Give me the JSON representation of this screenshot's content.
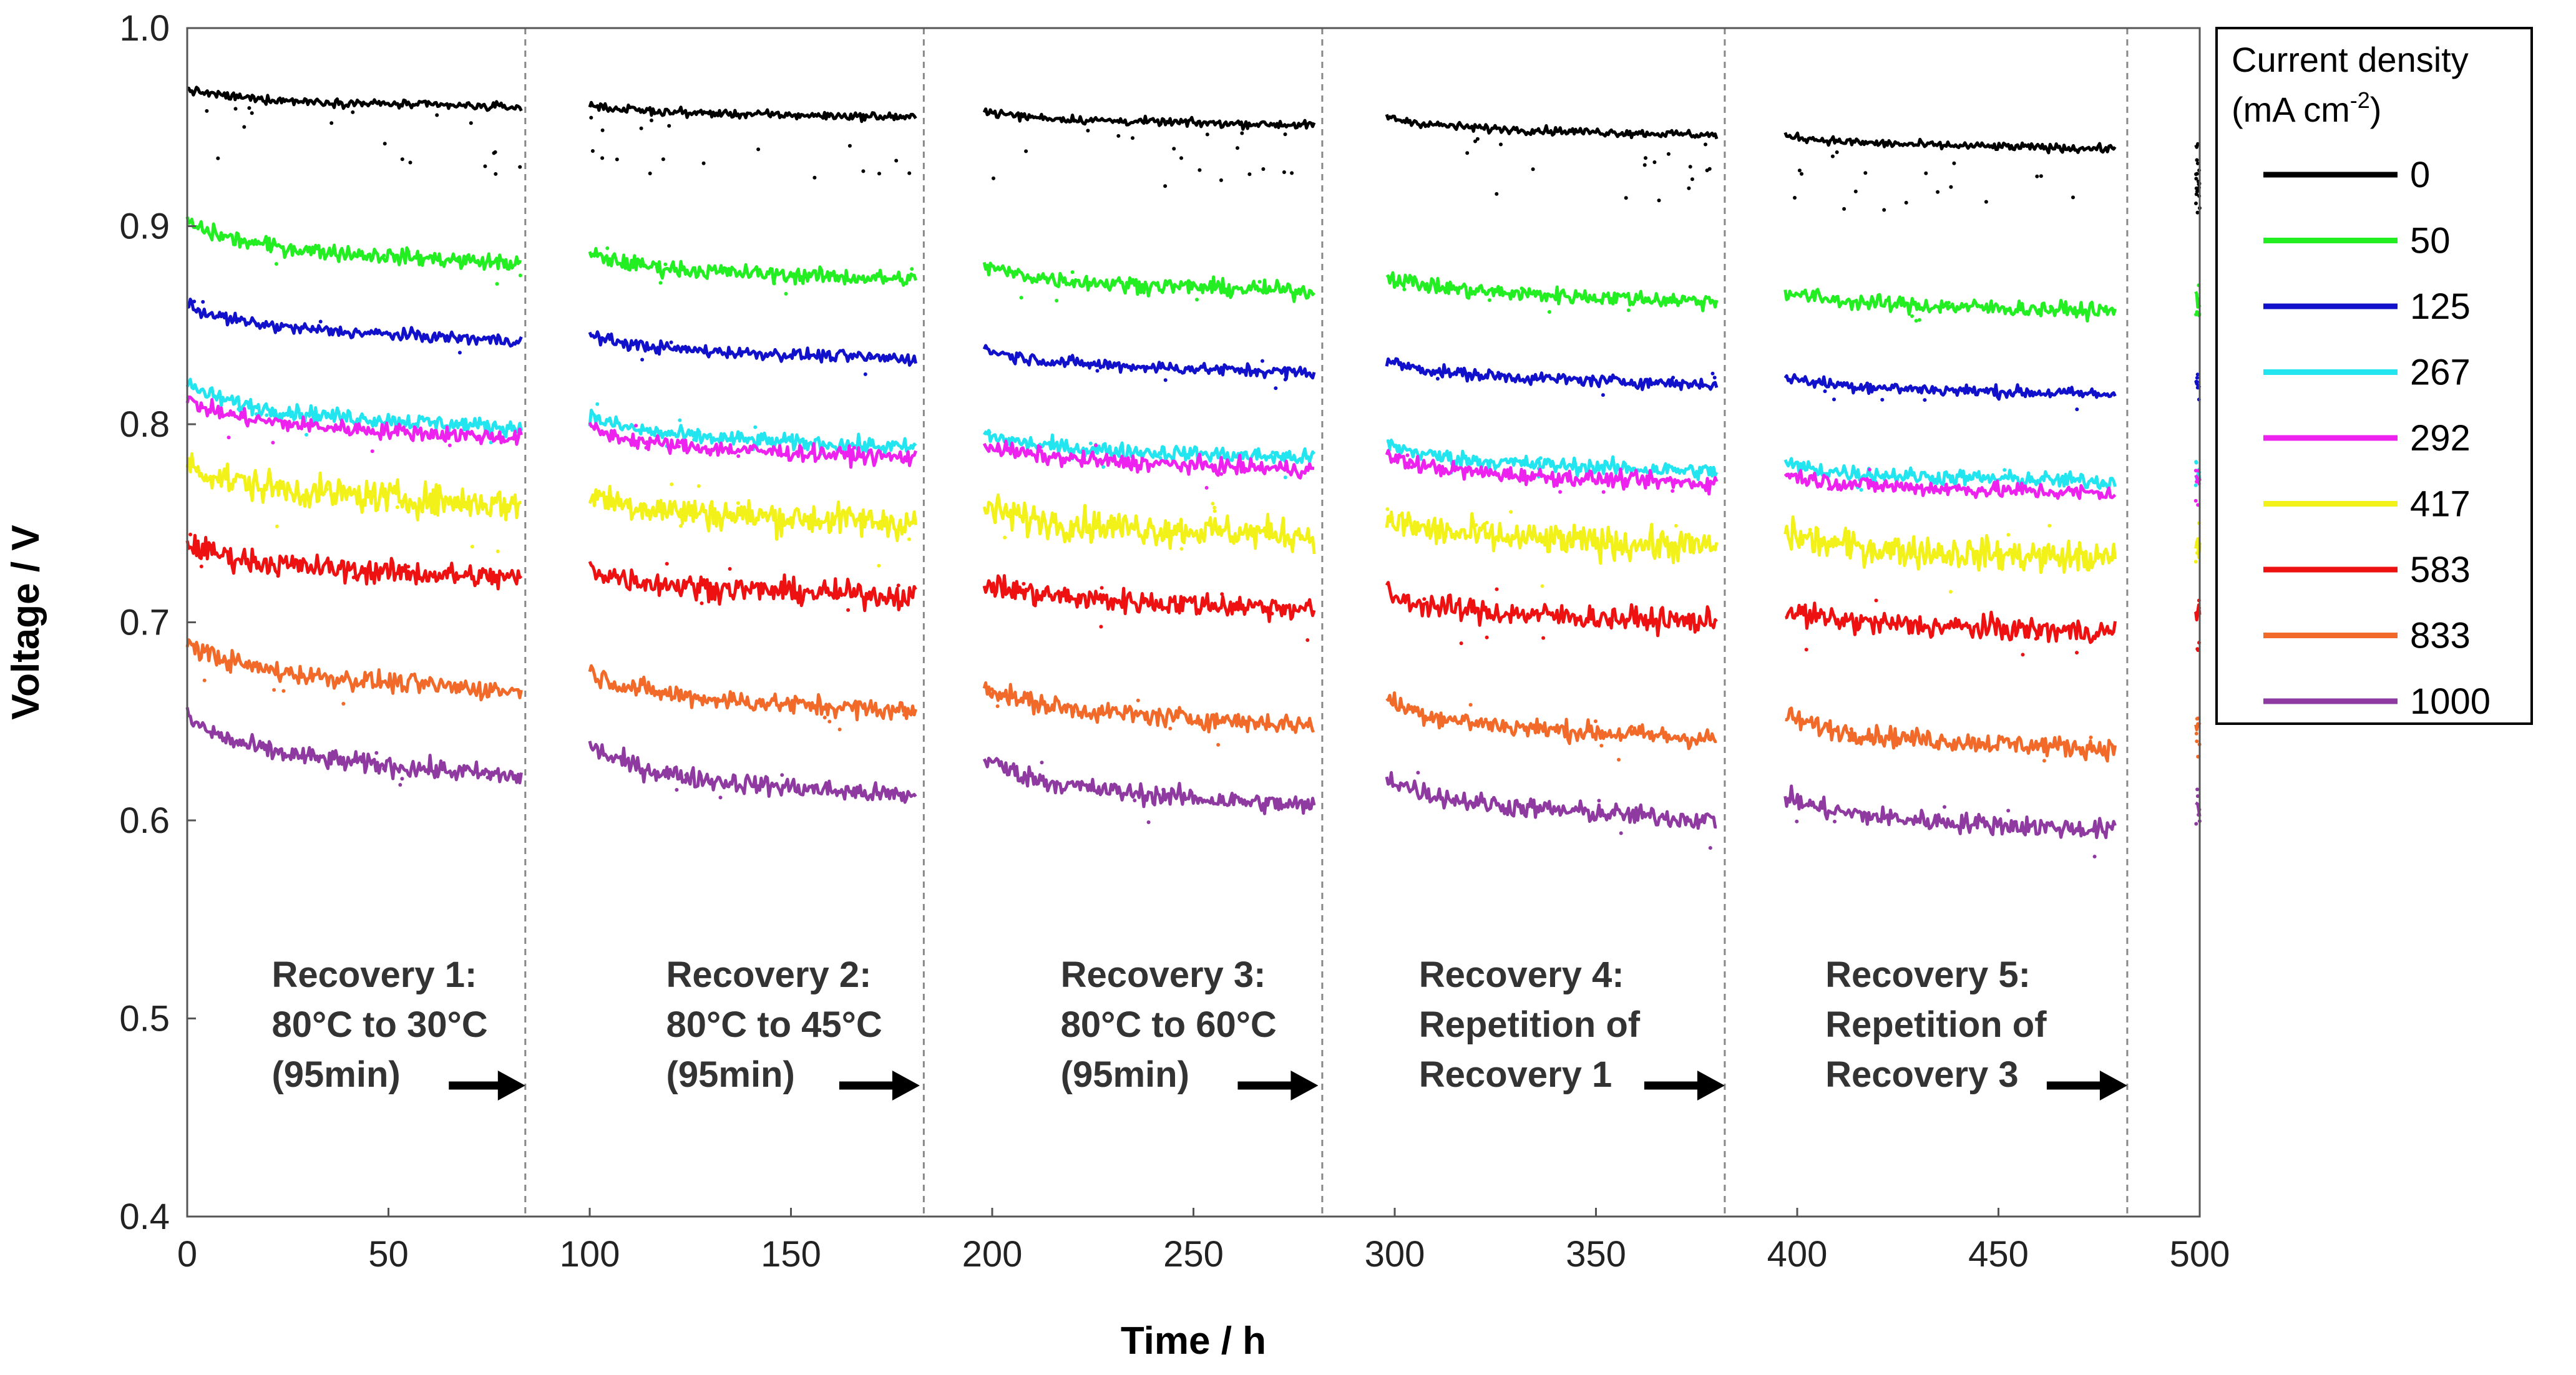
{
  "chart_data": {
    "type": "scatter",
    "title": "",
    "xlabel": "Time / h",
    "ylabel": "Voltage / V",
    "xlim": [
      0,
      500
    ],
    "ylim": [
      0.4,
      1.0
    ],
    "xticks": [
      "0",
      "50",
      "100",
      "150",
      "200",
      "250",
      "300",
      "350",
      "400",
      "450",
      "500"
    ],
    "yticks": [
      "0.4",
      "0.5",
      "0.6",
      "0.7",
      "0.8",
      "0.9",
      "1.0"
    ],
    "grid": false,
    "legend": {
      "title_line1": "Current density",
      "title_line2_main": "(mA cm",
      "title_line2_sup": "-2",
      "title_line2_end": ")",
      "placement": "right"
    },
    "segments": [
      {
        "x_start": 0,
        "x_end": 83
      },
      {
        "x_start": 100,
        "x_end": 181
      },
      {
        "x_start": 198,
        "x_end": 280
      },
      {
        "x_start": 298,
        "x_end": 380
      },
      {
        "x_start": 397,
        "x_end": 479
      },
      {
        "x_start": 499,
        "x_end": 500
      }
    ],
    "dividers": [
      84,
      183,
      282,
      382,
      482
    ],
    "series": [
      {
        "name": "0",
        "color": "#000000",
        "spread": 0.002,
        "start": [
          0.969,
          0.961,
          0.958,
          0.955,
          0.946,
          0.941
        ],
        "end": [
          0.96,
          0.955,
          0.951,
          0.946,
          0.939,
          0.94
        ]
      },
      {
        "name": "50",
        "color": "#22ee22",
        "spread": 0.004,
        "start": [
          0.902,
          0.886,
          0.88,
          0.875,
          0.867,
          0.865
        ],
        "end": [
          0.881,
          0.873,
          0.867,
          0.862,
          0.857,
          0.862
        ]
      },
      {
        "name": "125",
        "color": "#1111cc",
        "spread": 0.003,
        "start": [
          0.86,
          0.845,
          0.838,
          0.832,
          0.824,
          0.822
        ],
        "end": [
          0.842,
          0.833,
          0.826,
          0.82,
          0.815,
          0.82
        ]
      },
      {
        "name": "267",
        "color": "#22e5f0",
        "spread": 0.004,
        "start": [
          0.82,
          0.804,
          0.795,
          0.79,
          0.78,
          0.777
        ],
        "end": [
          0.798,
          0.788,
          0.783,
          0.776,
          0.771,
          0.775
        ]
      },
      {
        "name": "292",
        "color": "#ee22ee",
        "spread": 0.004,
        "start": [
          0.812,
          0.798,
          0.79,
          0.784,
          0.775,
          0.772
        ],
        "end": [
          0.793,
          0.783,
          0.777,
          0.77,
          0.765,
          0.77
        ]
      },
      {
        "name": "417",
        "color": "#f2f21a",
        "spread": 0.008,
        "start": [
          0.78,
          0.765,
          0.758,
          0.752,
          0.745,
          0.742
        ],
        "end": [
          0.759,
          0.75,
          0.744,
          0.738,
          0.732,
          0.738
        ]
      },
      {
        "name": "583",
        "color": "#ee1111",
        "spread": 0.006,
        "start": [
          0.74,
          0.727,
          0.72,
          0.714,
          0.706,
          0.705
        ],
        "end": [
          0.722,
          0.713,
          0.707,
          0.7,
          0.695,
          0.703
        ]
      },
      {
        "name": "833",
        "color": "#f26a2a",
        "spread": 0.005,
        "start": [
          0.69,
          0.675,
          0.668,
          0.661,
          0.653,
          0.65
        ],
        "end": [
          0.665,
          0.655,
          0.648,
          0.641,
          0.636,
          0.646
        ]
      },
      {
        "name": "1000",
        "color": "#8e3aa0",
        "spread": 0.005,
        "start": [
          0.652,
          0.638,
          0.632,
          0.622,
          0.612,
          0.61
        ],
        "end": [
          0.622,
          0.612,
          0.607,
          0.6,
          0.595,
          0.606
        ]
      }
    ],
    "annotations": [
      {
        "x": 21,
        "lines": [
          "Recovery 1:",
          "80°C to 30°C",
          "(95min)"
        ]
      },
      {
        "x": 119,
        "lines": [
          "Recovery 2:",
          "80°C to 45°C",
          "(95min)"
        ]
      },
      {
        "x": 217,
        "lines": [
          "Recovery 3:",
          "80°C to 60°C",
          "(95min)"
        ]
      },
      {
        "x": 306,
        "lines": [
          "Recovery 4:",
          "Repetition of",
          "Recovery 1"
        ]
      },
      {
        "x": 407,
        "lines": [
          "Recovery 5:",
          "Repetition of",
          "Recovery 3"
        ]
      }
    ],
    "arrows": [
      {
        "from": 65,
        "to": 84
      },
      {
        "from": 162,
        "to": 182
      },
      {
        "from": 261,
        "to": 281
      },
      {
        "from": 362,
        "to": 382
      },
      {
        "from": 462,
        "to": 482
      }
    ]
  }
}
